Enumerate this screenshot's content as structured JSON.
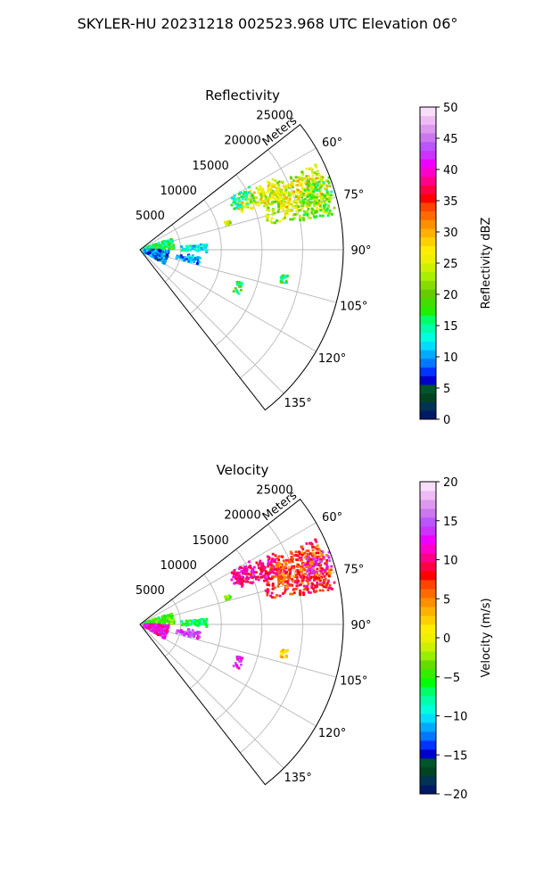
{
  "title": "SKYLER-HU  20231218  002523.968 UTC Elevation 06°",
  "colors": {
    "reflectivity_scale": [
      "#001a66",
      "#003355",
      "#004422",
      "#00552a",
      "#0000cc",
      "#0033ff",
      "#0077ff",
      "#00aaff",
      "#00ddff",
      "#00ffdd",
      "#00ffaa",
      "#00ff66",
      "#22ee00",
      "#44dd00",
      "#66cc00",
      "#88dd00",
      "#aaee00",
      "#ccf000",
      "#eef000",
      "#ffee00",
      "#ffd000",
      "#ffb000",
      "#ff9000",
      "#ff6a00",
      "#ff4400",
      "#ff0000",
      "#ff0044",
      "#ff0088",
      "#ff00cc",
      "#ee00ff",
      "#cc33ff",
      "#bb55ff",
      "#cc77ee",
      "#dd99ee",
      "#eebbf5",
      "#f8ddfb"
    ],
    "velocity_scale": [
      "#001a66",
      "#003355",
      "#004422",
      "#00552a",
      "#0000cc",
      "#0033ff",
      "#0077ff",
      "#00aaff",
      "#00ddff",
      "#00ffdd",
      "#00ffaa",
      "#00ff66",
      "#00ff00",
      "#33ee00",
      "#66dd00",
      "#99ee00",
      "#ccf000",
      "#eef000",
      "#ffee00",
      "#ffd000",
      "#ffb000",
      "#ff9000",
      "#ff6a00",
      "#ff4400",
      "#ff0000",
      "#ff0044",
      "#ff0088",
      "#ff00cc",
      "#ee00ff",
      "#cc33ff",
      "#bb55ff",
      "#cc77ee",
      "#dd99ee",
      "#eebbf5",
      "#f8ddfb"
    ]
  },
  "chart_data": [
    {
      "type": "heatmap",
      "projection": "polar-sector",
      "title": "Reflectivity",
      "range_label": "Meters",
      "range_ticks": [
        5000,
        10000,
        15000,
        20000,
        25000
      ],
      "range_tick_labels": [
        "5000",
        "10000",
        "15000",
        "20000",
        "25000"
      ],
      "range_max": 25000,
      "azimuth_limits": [
        52,
        142
      ],
      "azimuth_ticks": [
        60,
        75,
        90,
        105,
        120,
        135
      ],
      "azimuth_tick_labels": [
        "60°",
        "75°",
        "90°",
        "105°",
        "120°",
        "135°"
      ],
      "grid": true,
      "colorbar": {
        "label": "Reflectivity dBZ",
        "min": 0,
        "max": 50,
        "ticks": [
          0,
          5,
          10,
          15,
          20,
          25,
          30,
          35,
          40,
          45,
          50
        ],
        "tick_labels": [
          "0",
          "5",
          "10",
          "15",
          "20",
          "25",
          "30",
          "35",
          "40",
          "45",
          "50"
        ]
      },
      "echoes": [
        {
          "az": [
            64,
            79
          ],
          "r": [
            16000,
            24000
          ],
          "value": 23
        },
        {
          "az": [
            62,
            70
          ],
          "r": [
            13000,
            19000
          ],
          "value": 26
        },
        {
          "az": [
            66,
            76
          ],
          "r": [
            18000,
            24500
          ],
          "value": 27
        },
        {
          "az": [
            73,
            80
          ],
          "r": [
            20000,
            24500
          ],
          "value": 20
        },
        {
          "az": [
            68,
            74
          ],
          "r": [
            21500,
            25000
          ],
          "value": 18
        },
        {
          "az": [
            60,
            67
          ],
          "r": [
            12500,
            15500
          ],
          "value": 15
        },
        {
          "az": [
            85,
            92
          ],
          "r": [
            5000,
            8500
          ],
          "value": 12
        },
        {
          "az": [
            96,
            104
          ],
          "r": [
            4500,
            7500
          ],
          "value": 10
        },
        {
          "az": [
            70,
            89
          ],
          "r": [
            500,
            4200
          ],
          "value": 17
        },
        {
          "az": [
            90,
            120
          ],
          "r": [
            500,
            3600
          ],
          "value": 9
        },
        {
          "az": [
            108,
            114
          ],
          "r": [
            12500,
            13500
          ],
          "value": 17
        },
        {
          "az": [
            72,
            74
          ],
          "r": [
            11000,
            11600
          ],
          "value": 24
        },
        {
          "az": [
            100,
            103
          ],
          "r": [
            17500,
            18500
          ],
          "value": 16
        }
      ]
    },
    {
      "type": "heatmap",
      "projection": "polar-sector",
      "title": "Velocity",
      "range_label": "Meters",
      "range_ticks": [
        5000,
        10000,
        15000,
        20000,
        25000
      ],
      "range_tick_labels": [
        "5000",
        "10000",
        "15000",
        "20000",
        "25000"
      ],
      "range_max": 25000,
      "azimuth_limits": [
        52,
        142
      ],
      "azimuth_ticks": [
        60,
        75,
        90,
        105,
        120,
        135
      ],
      "azimuth_tick_labels": [
        "60°",
        "75°",
        "90°",
        "105°",
        "120°",
        "135°"
      ],
      "grid": true,
      "colorbar": {
        "label": "Velocity (m/s)",
        "min": -20,
        "max": 20,
        "ticks": [
          -20,
          -15,
          -10,
          -5,
          0,
          5,
          10,
          15,
          20
        ],
        "tick_labels": [
          "−20",
          "−15",
          "−10",
          "−5",
          "0",
          "5",
          "10",
          "15",
          "20"
        ]
      },
      "echoes": [
        {
          "az": [
            64,
            79
          ],
          "r": [
            16000,
            24000
          ],
          "value": 8
        },
        {
          "az": [
            62,
            70
          ],
          "r": [
            13000,
            19000
          ],
          "value": 10
        },
        {
          "az": [
            66,
            76
          ],
          "r": [
            18000,
            24500
          ],
          "value": 6
        },
        {
          "az": [
            73,
            80
          ],
          "r": [
            20000,
            24500
          ],
          "value": 9
        },
        {
          "az": [
            68,
            74
          ],
          "r": [
            21500,
            25000
          ],
          "value": 13
        },
        {
          "az": [
            60,
            67
          ],
          "r": [
            12500,
            15500
          ],
          "value": 11
        },
        {
          "az": [
            85,
            92
          ],
          "r": [
            5000,
            8500
          ],
          "value": -7
        },
        {
          "az": [
            96,
            104
          ],
          "r": [
            4500,
            7500
          ],
          "value": 14
        },
        {
          "az": [
            70,
            89
          ],
          "r": [
            500,
            4200
          ],
          "value": -4
        },
        {
          "az": [
            90,
            120
          ],
          "r": [
            500,
            3600
          ],
          "value": 12
        },
        {
          "az": [
            108,
            114
          ],
          "r": [
            12500,
            13500
          ],
          "value": 13
        },
        {
          "az": [
            72,
            74
          ],
          "r": [
            11000,
            11600
          ],
          "value": -3
        },
        {
          "az": [
            100,
            103
          ],
          "r": [
            17500,
            18500
          ],
          "value": 2
        }
      ]
    }
  ]
}
